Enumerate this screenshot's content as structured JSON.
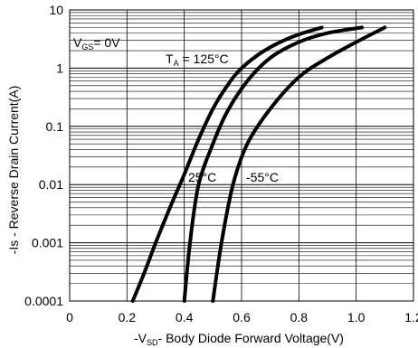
{
  "chart_data": {
    "type": "line",
    "title": "",
    "xlabel": {
      "prefix": "-V",
      "sub": "SD",
      "rest": "- Body Diode Forward Voltage(V)"
    },
    "ylabel": "-Is - Reverse Drain Current(A)",
    "x_scale": "linear",
    "y_scale": "log",
    "xlim": [
      0,
      1.2
    ],
    "ylim": [
      0.0001,
      10
    ],
    "x_ticks": [
      "0",
      "0.2",
      "0.4",
      "0.6",
      "0.8",
      "1.0",
      "1.2"
    ],
    "y_ticks": [
      "0.0001",
      "0.001",
      "0.01",
      "0.1",
      "1",
      "10"
    ],
    "grid": true,
    "annotations": {
      "vgs": {
        "prefix": "V",
        "sub": "GS",
        "rest": "= 0V"
      },
      "ta": {
        "prefix": "T",
        "sub": "A",
        "rest": " = 125°C"
      }
    },
    "series": [
      {
        "name": "125°C",
        "label": "",
        "points": [
          [
            0.22,
            0.0001
          ],
          [
            0.26,
            0.0003
          ],
          [
            0.3,
            0.001
          ],
          [
            0.35,
            0.004
          ],
          [
            0.4,
            0.015
          ],
          [
            0.45,
            0.06
          ],
          [
            0.5,
            0.2
          ],
          [
            0.55,
            0.5
          ],
          [
            0.6,
            1.0
          ],
          [
            0.68,
            2.0
          ],
          [
            0.78,
            3.5
          ],
          [
            0.88,
            5.0
          ]
        ]
      },
      {
        "name": "25°C",
        "label": "25°C",
        "points": [
          [
            0.4,
            0.0001
          ],
          [
            0.42,
            0.001
          ],
          [
            0.45,
            0.01
          ],
          [
            0.5,
            0.05
          ],
          [
            0.55,
            0.18
          ],
          [
            0.62,
            0.6
          ],
          [
            0.7,
            1.5
          ],
          [
            0.8,
            2.8
          ],
          [
            0.9,
            4.0
          ],
          [
            1.02,
            5.0
          ]
        ]
      },
      {
        "name": "-55°C",
        "label": "-55°C",
        "points": [
          [
            0.5,
            0.0001
          ],
          [
            0.53,
            0.001
          ],
          [
            0.57,
            0.01
          ],
          [
            0.62,
            0.05
          ],
          [
            0.7,
            0.2
          ],
          [
            0.8,
            0.7
          ],
          [
            0.9,
            1.5
          ],
          [
            1.0,
            2.8
          ],
          [
            1.1,
            5.0
          ]
        ]
      }
    ]
  }
}
